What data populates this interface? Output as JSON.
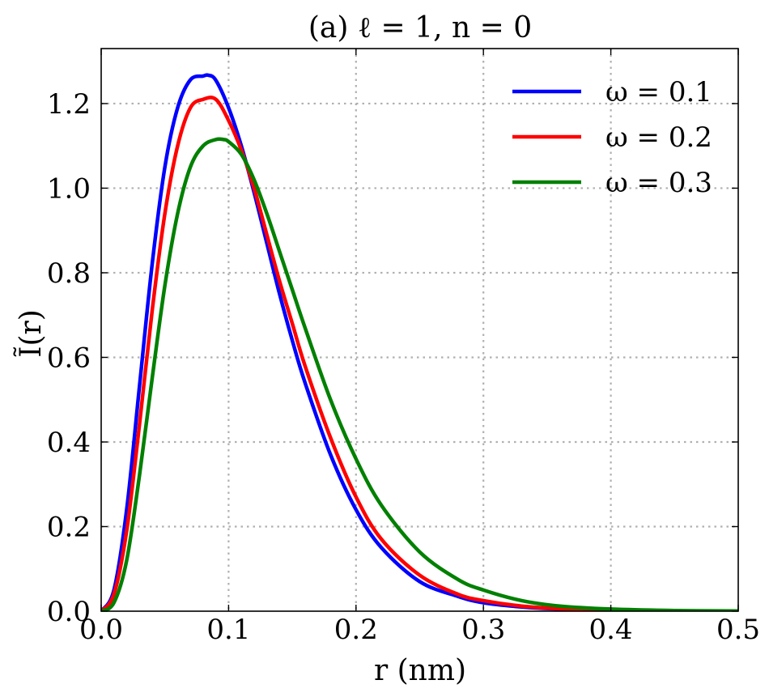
{
  "chart_data": {
    "type": "line",
    "title": "(a) ℓ = 1, n = 0",
    "xlabel": "r (nm)",
    "ylabel": "Ĩ(r)",
    "xlim": [
      0.0,
      0.5
    ],
    "ylim": [
      0.0,
      1.33
    ],
    "xticks": [
      0.0,
      0.1,
      0.2,
      0.3,
      0.4,
      0.5
    ],
    "xtick_labels": [
      "0.0",
      "0.1",
      "0.2",
      "0.3",
      "0.4",
      "0.5"
    ],
    "yticks": [
      0.0,
      0.2,
      0.4,
      0.6,
      0.8,
      1.0,
      1.2
    ],
    "ytick_labels": [
      "0.0",
      "0.2",
      "0.4",
      "0.6",
      "0.8",
      "1.0",
      "1.2"
    ],
    "grid": true,
    "legend_position": "top-right",
    "series": [
      {
        "name": "ω = 0.1",
        "color": "#0000ff",
        "x": [
          0.0,
          0.01,
          0.02,
          0.03,
          0.04,
          0.05,
          0.06,
          0.07,
          0.08,
          0.084,
          0.09,
          0.1,
          0.11,
          0.12,
          0.13,
          0.14,
          0.15,
          0.16,
          0.18,
          0.2,
          0.22,
          0.25,
          0.28,
          0.3,
          0.33,
          0.36,
          0.4,
          0.45,
          0.5
        ],
        "y": [
          0.0,
          0.05,
          0.24,
          0.53,
          0.82,
          1.05,
          1.19,
          1.256,
          1.265,
          1.267,
          1.255,
          1.19,
          1.1,
          0.99,
          0.87,
          0.75,
          0.64,
          0.54,
          0.37,
          0.24,
          0.15,
          0.07,
          0.035,
          0.02,
          0.01,
          0.005,
          0.002,
          0.0005,
          0.0001
        ]
      },
      {
        "name": "ω = 0.2",
        "color": "#ff0000",
        "x": [
          0.0,
          0.01,
          0.02,
          0.03,
          0.04,
          0.05,
          0.06,
          0.07,
          0.08,
          0.09,
          0.1,
          0.11,
          0.12,
          0.13,
          0.14,
          0.15,
          0.16,
          0.18,
          0.2,
          0.22,
          0.25,
          0.28,
          0.3,
          0.33,
          0.36,
          0.4,
          0.45,
          0.5
        ],
        "y": [
          0.0,
          0.04,
          0.19,
          0.44,
          0.71,
          0.94,
          1.1,
          1.19,
          1.21,
          1.21,
          1.16,
          1.09,
          1.0,
          0.89,
          0.78,
          0.68,
          0.58,
          0.41,
          0.27,
          0.17,
          0.085,
          0.04,
          0.025,
          0.012,
          0.006,
          0.002,
          0.0006,
          0.0001
        ]
      },
      {
        "name": "ω = 0.3",
        "color": "#008000",
        "x": [
          0.0,
          0.01,
          0.02,
          0.03,
          0.04,
          0.05,
          0.06,
          0.07,
          0.08,
          0.09,
          0.096,
          0.1,
          0.11,
          0.12,
          0.13,
          0.14,
          0.15,
          0.16,
          0.18,
          0.2,
          0.22,
          0.25,
          0.28,
          0.3,
          0.33,
          0.36,
          0.4,
          0.45,
          0.5
        ],
        "y": [
          0.0,
          0.02,
          0.12,
          0.32,
          0.55,
          0.77,
          0.94,
          1.05,
          1.1,
          1.115,
          1.115,
          1.11,
          1.08,
          1.02,
          0.94,
          0.85,
          0.76,
          0.67,
          0.5,
          0.36,
          0.25,
          0.14,
          0.075,
          0.05,
          0.025,
          0.012,
          0.005,
          0.0015,
          0.0004
        ]
      }
    ]
  }
}
